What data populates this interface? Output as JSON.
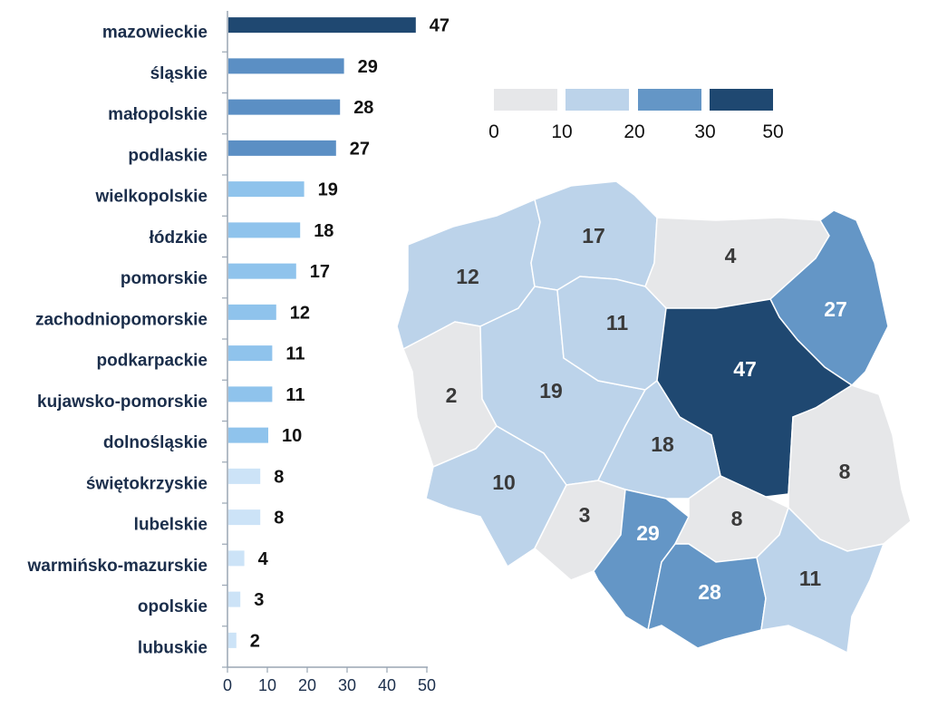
{
  "chart_data": [
    {
      "type": "bar",
      "orientation": "horizontal",
      "categories": [
        "mazowieckie",
        "śląskie",
        "małopolskie",
        "podlaskie",
        "wielkopolskie",
        "łódzkie",
        "pomorskie",
        "zachodniopomorskie",
        "podkarpackie",
        "kujawsko-pomorskie",
        "dolnośląskie",
        "świętokrzyskie",
        "lubelskie",
        "warmińsko-mazurskie",
        "opolskie",
        "lubuskie"
      ],
      "values": [
        47,
        29,
        28,
        27,
        19,
        18,
        17,
        12,
        11,
        11,
        10,
        8,
        8,
        4,
        3,
        2
      ],
      "xticks": [
        "0",
        "10",
        "20",
        "30",
        "40",
        "50"
      ],
      "xlim": [
        0,
        50
      ],
      "grid": false
    },
    {
      "type": "choropleth",
      "legend": {
        "placement": "top-right",
        "breaks": [
          "0",
          "10",
          "20",
          "30",
          "50"
        ],
        "colors": [
          "#e6e7e9",
          "#bcd3ea",
          "#6496c6",
          "#1f4871"
        ]
      },
      "regions": [
        {
          "name": "zachodniopomorskie",
          "value": "12"
        },
        {
          "name": "pomorskie",
          "value": "17"
        },
        {
          "name": "warmińsko-mazurskie",
          "value": "4"
        },
        {
          "name": "podlaskie",
          "value": "27"
        },
        {
          "name": "lubuskie",
          "value": "2"
        },
        {
          "name": "wielkopolskie",
          "value": "19"
        },
        {
          "name": "kujawsko-pomorskie",
          "value": "11"
        },
        {
          "name": "mazowieckie",
          "value": "47"
        },
        {
          "name": "łódzkie",
          "value": "18"
        },
        {
          "name": "dolnośląskie",
          "value": "10"
        },
        {
          "name": "opolskie",
          "value": "3"
        },
        {
          "name": "śląskie",
          "value": "29"
        },
        {
          "name": "świętokrzyskie",
          "value": "8"
        },
        {
          "name": "lubelskie",
          "value": "8"
        },
        {
          "name": "małopolskie",
          "value": "28"
        },
        {
          "name": "podkarpackie",
          "value": "11"
        }
      ]
    }
  ]
}
